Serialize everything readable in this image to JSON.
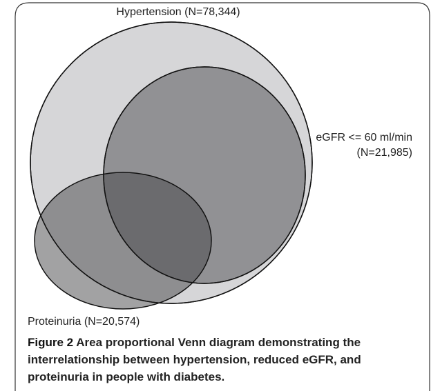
{
  "sets": [
    {
      "label": "Hypertension (N=78,344)"
    },
    {
      "label": [
        "eGFR <= 60 ml/min",
        "(N=21,985)"
      ]
    },
    {
      "label": "Proteinuria (N=20,574)"
    }
  ],
  "caption": {
    "label": "Figure 2",
    "text": "Area proportional Venn diagram demonstrating the interrelationship between hypertension, reduced eGFR, and proteinuria in people with diabetes."
  }
}
